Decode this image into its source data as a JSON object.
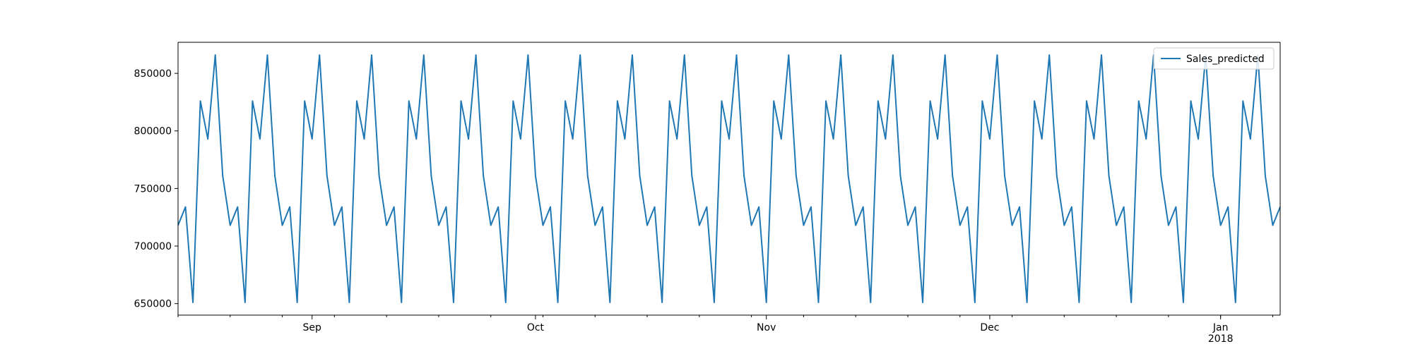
{
  "chart_data": {
    "type": "line",
    "title": "",
    "xlabel": "",
    "ylabel": "",
    "x_start": "2017-08-14",
    "x_end": "2018-01-09",
    "ylim": [
      640000,
      877000
    ],
    "yticks": [
      650000,
      700000,
      750000,
      800000,
      850000
    ],
    "ytick_labels": [
      "650000",
      "700000",
      "750000",
      "800000",
      "850000"
    ],
    "xticks_major": [
      {
        "date": "2017-09-01",
        "label": "Sep",
        "year_label": ""
      },
      {
        "date": "2017-10-01",
        "label": "Oct",
        "year_label": ""
      },
      {
        "date": "2017-11-01",
        "label": "Nov",
        "year_label": ""
      },
      {
        "date": "2017-12-01",
        "label": "Dec",
        "year_label": ""
      },
      {
        "date": "2018-01-01",
        "label": "Jan",
        "year_label": "2018"
      }
    ],
    "xticks_minor_weekday": "Monday",
    "grid": false,
    "legend_position": "top-right",
    "weekly_pattern": [
      718000,
      734000,
      651000,
      826000,
      793000,
      866000,
      761000
    ],
    "series": [
      {
        "name": "Sales_predicted",
        "color": "#1f77b4",
        "description": "daily predicted sales repeating the 7-day weekly_pattern from x_start to x_end"
      }
    ]
  }
}
